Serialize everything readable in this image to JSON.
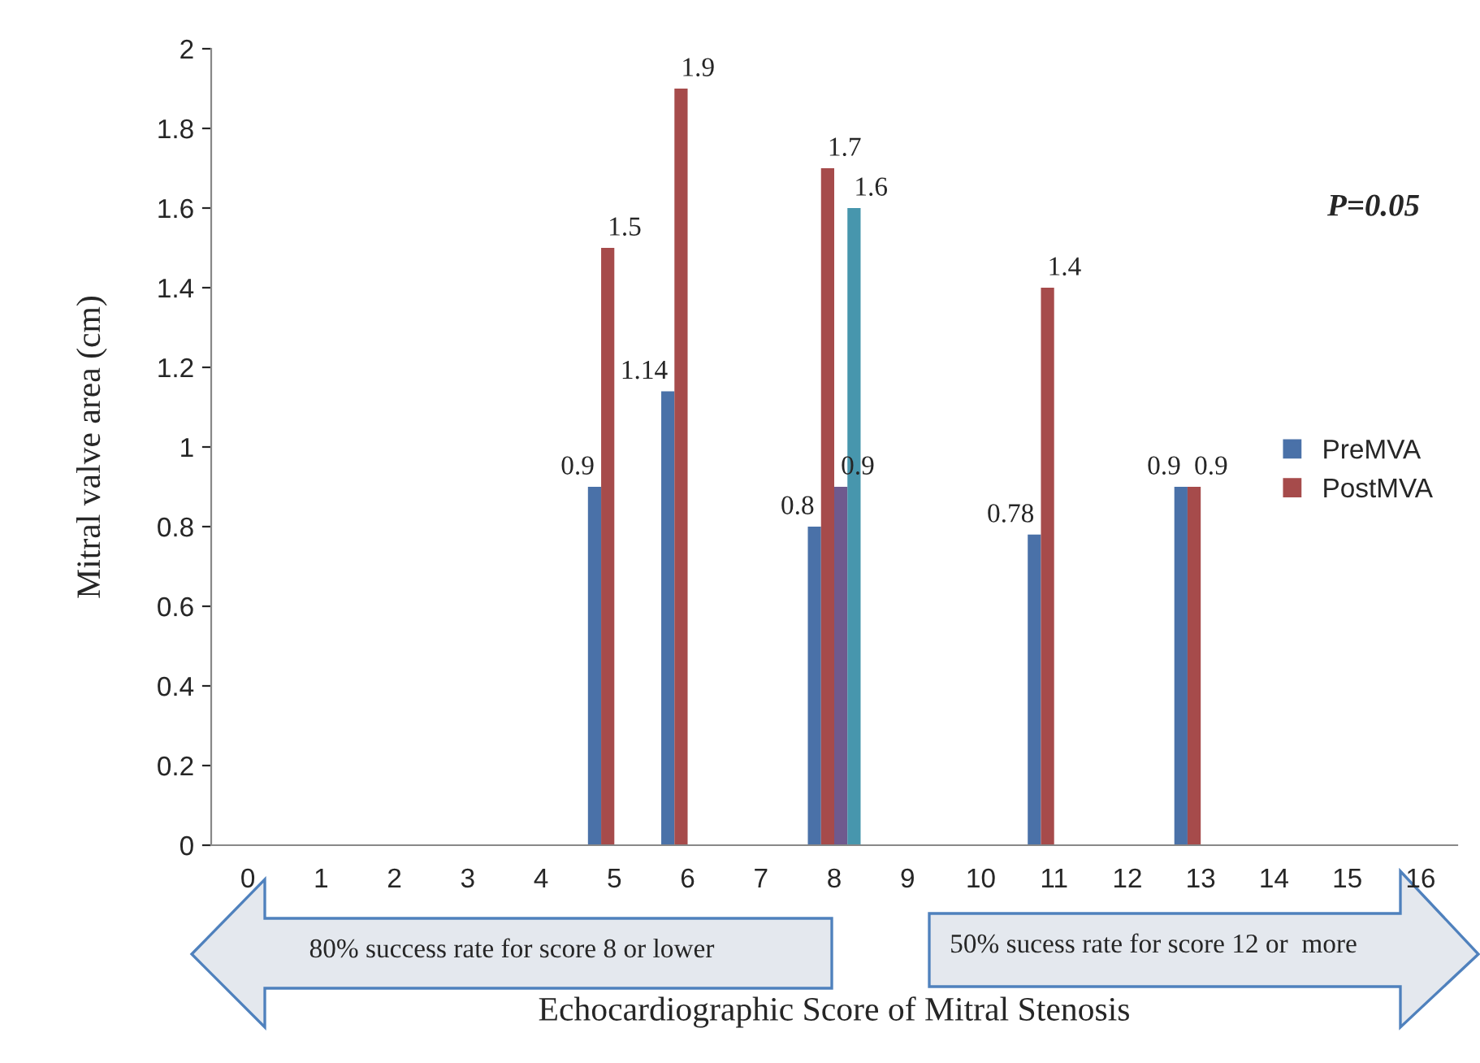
{
  "chart_data": {
    "type": "bar",
    "xlabel": "Echocardiographic Score of Mitral Stenosis",
    "ylabel": "Mitral valve area (cm)",
    "categories": [
      "0",
      "1",
      "2",
      "3",
      "4",
      "5",
      "6",
      "7",
      "8",
      "9",
      "10",
      "11",
      "12",
      "13",
      "14",
      "15",
      "16"
    ],
    "series": [
      {
        "name": "PreMVA",
        "color": "#4a71a8",
        "values": [
          null,
          null,
          null,
          null,
          null,
          0.9,
          1.14,
          null,
          0.8,
          null,
          null,
          0.78,
          null,
          0.9,
          null,
          null,
          null
        ],
        "value_labels": [
          null,
          null,
          null,
          null,
          null,
          "0.9",
          "1.14",
          null,
          "0.8",
          null,
          null,
          "0.78",
          null,
          "0.9",
          null,
          null,
          null
        ]
      },
      {
        "name": "PostMVA",
        "color": "#a64b4b",
        "values": [
          null,
          null,
          null,
          null,
          null,
          1.5,
          1.9,
          null,
          1.7,
          null,
          null,
          1.4,
          null,
          0.9,
          null,
          null,
          null
        ],
        "value_labels": [
          null,
          null,
          null,
          null,
          null,
          "1.5",
          "1.9",
          null,
          "1.7",
          null,
          null,
          "1.4",
          null,
          "0.9",
          null,
          null,
          null
        ]
      },
      {
        "color": "#6f5a8e",
        "values": [
          null,
          null,
          null,
          null,
          null,
          null,
          null,
          null,
          0.9,
          null,
          null,
          null,
          null,
          null,
          null,
          null,
          null
        ],
        "value_labels": [
          null,
          null,
          null,
          null,
          null,
          null,
          null,
          null,
          "0.9",
          null,
          null,
          null,
          null,
          null,
          null,
          null,
          null
        ]
      },
      {
        "color": "#4796ad",
        "values": [
          null,
          null,
          null,
          null,
          null,
          null,
          null,
          null,
          1.6,
          null,
          null,
          null,
          null,
          null,
          null,
          null,
          null
        ],
        "value_labels": [
          null,
          null,
          null,
          null,
          null,
          null,
          null,
          null,
          "1.6",
          null,
          null,
          null,
          null,
          null,
          null,
          null,
          null
        ]
      }
    ],
    "ylim": [
      0,
      2
    ],
    "yticks": [
      0,
      0.2,
      0.4,
      0.6,
      0.8,
      1,
      1.2,
      1.4,
      1.6,
      1.8,
      2
    ],
    "grid": false,
    "legend": "right",
    "annotations": [
      "P=0.05",
      "80% success rate for score 8 or lower",
      "50% sucess rate for score 12 or  more"
    ]
  }
}
